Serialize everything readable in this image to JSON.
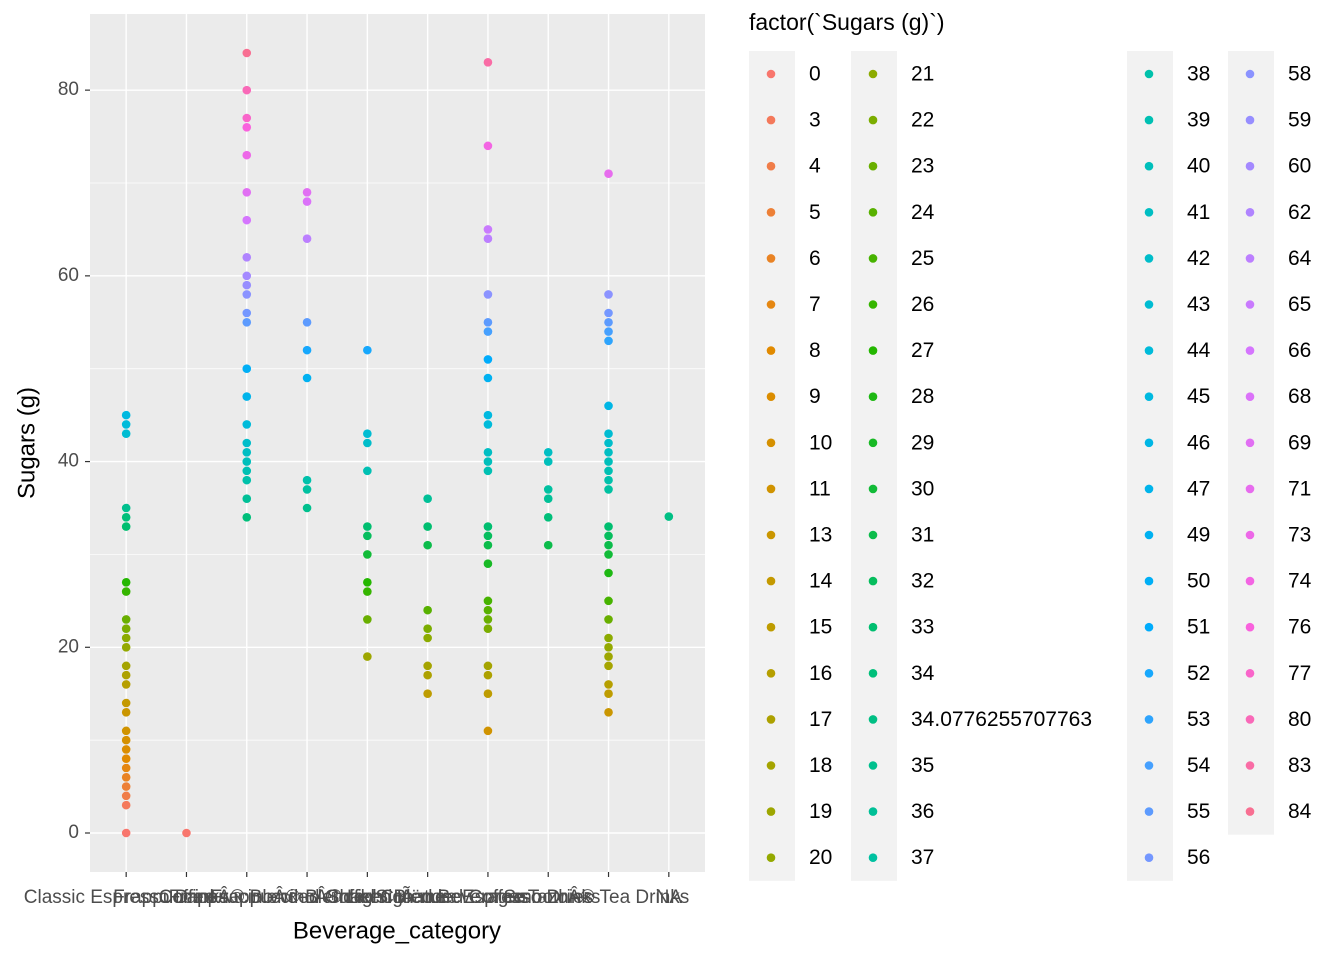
{
  "chart_data": {
    "type": "scatter",
    "x_label": "Beverage_category",
    "y_label": "Sugars (g)",
    "legend_title": "factor(`Sugars (g)`)",
    "categories": [
      "Classic Espresso Drinks",
      "Coffee",
      "FrappuccinoÂ® Blended Coffee",
      "FrappuccinoÂ® Blended CrÃ¨me",
      "FrappuccinoÂ® Light Blended Coffee",
      "Shaken Iced Beverages",
      "Signature Espresso Drinks",
      "Smoothies",
      "TazoÂ® Tea Drinks",
      "NA"
    ],
    "ylim": [
      -4.2,
      88.2
    ],
    "yticks": [
      0,
      20,
      40,
      60,
      80
    ],
    "yminorticks": [
      10,
      30,
      50,
      70
    ],
    "grid": true,
    "legend": "right",
    "series": [
      {
        "name": "0",
        "color": "#F8766D",
        "values": [
          0,
          0,
          null,
          null,
          null,
          null,
          null,
          null,
          null,
          null
        ]
      },
      {
        "name": "3",
        "color": "#F4795B",
        "values": [
          3,
          null,
          null,
          null,
          null,
          null,
          null,
          null,
          null,
          null
        ]
      },
      {
        "name": "4",
        "color": "#F07D49",
        "values": [
          4,
          null,
          null,
          null,
          null,
          null,
          null,
          null,
          null,
          null
        ]
      },
      {
        "name": "5",
        "color": "#ED8037",
        "values": [
          5,
          null,
          null,
          null,
          null,
          null,
          null,
          null,
          null,
          null
        ]
      },
      {
        "name": "6",
        "color": "#E98324",
        "values": [
          6,
          null,
          null,
          null,
          null,
          null,
          null,
          null,
          null,
          null
        ]
      },
      {
        "name": "7",
        "color": "#E58712",
        "values": [
          7,
          null,
          null,
          null,
          null,
          null,
          null,
          null,
          null,
          null
        ]
      },
      {
        "name": "8",
        "color": "#E18A00",
        "values": [
          8,
          null,
          null,
          null,
          null,
          null,
          null,
          null,
          null,
          null
        ]
      },
      {
        "name": "9",
        "color": "#DB8D00",
        "values": [
          9,
          null,
          null,
          null,
          null,
          null,
          null,
          null,
          null,
          null
        ]
      },
      {
        "name": "10",
        "color": "#D59000",
        "values": [
          10,
          null,
          null,
          null,
          null,
          null,
          null,
          null,
          null,
          null
        ]
      },
      {
        "name": "11",
        "color": "#D09300",
        "values": [
          11,
          null,
          null,
          null,
          null,
          null,
          11,
          null,
          null,
          null
        ]
      },
      {
        "name": "13",
        "color": "#CA9600",
        "values": [
          13,
          null,
          null,
          null,
          null,
          null,
          null,
          null,
          13,
          null
        ]
      },
      {
        "name": "14",
        "color": "#C49900",
        "values": [
          14,
          null,
          null,
          null,
          null,
          null,
          null,
          null,
          null,
          null
        ]
      },
      {
        "name": "15",
        "color": "#BE9C00",
        "values": [
          null,
          null,
          null,
          null,
          null,
          15,
          15,
          null,
          15,
          null
        ]
      },
      {
        "name": "16",
        "color": "#B69F00",
        "values": [
          16,
          null,
          null,
          null,
          null,
          null,
          null,
          null,
          16,
          null
        ]
      },
      {
        "name": "17",
        "color": "#ADA100",
        "values": [
          17,
          null,
          null,
          null,
          null,
          17,
          17,
          null,
          null,
          null
        ]
      },
      {
        "name": "18",
        "color": "#A5A400",
        "values": [
          18,
          null,
          null,
          null,
          null,
          18,
          18,
          null,
          18,
          null
        ]
      },
      {
        "name": "19",
        "color": "#9DA600",
        "values": [
          null,
          null,
          null,
          null,
          19,
          null,
          null,
          null,
          19,
          null
        ]
      },
      {
        "name": "20",
        "color": "#94A900",
        "values": [
          20,
          null,
          null,
          null,
          null,
          null,
          null,
          null,
          20,
          null
        ]
      },
      {
        "name": "21",
        "color": "#8CAB00",
        "values": [
          21,
          null,
          null,
          null,
          null,
          21,
          null,
          null,
          21,
          null
        ]
      },
      {
        "name": "22",
        "color": "#7BAD00",
        "values": [
          22,
          null,
          null,
          null,
          null,
          22,
          22,
          null,
          null,
          null
        ]
      },
      {
        "name": "23",
        "color": "#69AF00",
        "values": [
          23,
          null,
          null,
          null,
          23,
          null,
          23,
          null,
          23,
          null
        ]
      },
      {
        "name": "24",
        "color": "#58B100",
        "values": [
          null,
          null,
          null,
          null,
          null,
          24,
          24,
          null,
          null,
          null
        ]
      },
      {
        "name": "25",
        "color": "#47B300",
        "values": [
          null,
          null,
          null,
          null,
          null,
          null,
          25,
          null,
          25,
          null
        ]
      },
      {
        "name": "26",
        "color": "#35B500",
        "values": [
          26,
          null,
          null,
          null,
          26,
          null,
          null,
          null,
          null,
          null
        ]
      },
      {
        "name": "27",
        "color": "#24B700",
        "values": [
          27,
          null,
          null,
          null,
          27,
          null,
          null,
          null,
          null,
          null
        ]
      },
      {
        "name": "28",
        "color": "#1EB813",
        "values": [
          null,
          null,
          null,
          null,
          null,
          null,
          null,
          null,
          28,
          null
        ]
      },
      {
        "name": "29",
        "color": "#18B925",
        "values": [
          null,
          null,
          null,
          null,
          null,
          null,
          29,
          null,
          null,
          null
        ]
      },
      {
        "name": "30",
        "color": "#12BB38",
        "values": [
          null,
          null,
          null,
          null,
          30,
          null,
          null,
          null,
          30,
          null
        ]
      },
      {
        "name": "31",
        "color": "#0CBC4B",
        "values": [
          null,
          null,
          null,
          null,
          null,
          31,
          31,
          31,
          31,
          null
        ]
      },
      {
        "name": "32",
        "color": "#06BD5D",
        "values": [
          null,
          null,
          null,
          null,
          32,
          null,
          32,
          null,
          32,
          null
        ]
      },
      {
        "name": "33",
        "color": "#00BE70",
        "values": [
          33,
          null,
          null,
          null,
          33,
          33,
          33,
          null,
          33,
          null
        ]
      },
      {
        "name": "34",
        "color": "#00BF7A",
        "values": [
          34,
          null,
          34,
          null,
          null,
          null,
          null,
          34,
          null,
          null
        ]
      },
      {
        "name": "34.0776255707763",
        "color": "#00BF84",
        "values": [
          null,
          null,
          null,
          null,
          null,
          null,
          null,
          null,
          null,
          34.0776255707763
        ]
      },
      {
        "name": "35",
        "color": "#00C08E",
        "values": [
          35,
          null,
          null,
          35,
          null,
          null,
          null,
          null,
          null,
          null
        ]
      },
      {
        "name": "36",
        "color": "#00C097",
        "values": [
          null,
          null,
          36,
          null,
          null,
          36,
          null,
          36,
          null,
          null
        ]
      },
      {
        "name": "37",
        "color": "#00C1A1",
        "values": [
          null,
          null,
          null,
          37,
          null,
          null,
          null,
          37,
          37,
          null
        ]
      },
      {
        "name": "38",
        "color": "#00C1AB",
        "values": [
          null,
          null,
          38,
          38,
          null,
          null,
          null,
          null,
          38,
          null
        ]
      },
      {
        "name": "39",
        "color": "#00C0B3",
        "values": [
          null,
          null,
          39,
          null,
          39,
          null,
          39,
          null,
          39,
          null
        ]
      },
      {
        "name": "40",
        "color": "#00BFBB",
        "values": [
          null,
          null,
          40,
          null,
          null,
          null,
          40,
          40,
          40,
          null
        ]
      },
      {
        "name": "41",
        "color": "#00BEC3",
        "values": [
          null,
          null,
          41,
          null,
          null,
          null,
          41,
          41,
          41,
          null
        ]
      },
      {
        "name": "42",
        "color": "#00BDCA",
        "values": [
          null,
          null,
          42,
          null,
          42,
          null,
          null,
          null,
          42,
          null
        ]
      },
      {
        "name": "43",
        "color": "#00BCD2",
        "values": [
          43,
          null,
          null,
          null,
          43,
          null,
          null,
          null,
          43,
          null
        ]
      },
      {
        "name": "44",
        "color": "#00BBDA",
        "values": [
          44,
          null,
          44,
          null,
          null,
          null,
          44,
          null,
          null,
          null
        ]
      },
      {
        "name": "45",
        "color": "#00B9E0",
        "values": [
          45,
          null,
          null,
          null,
          null,
          null,
          45,
          null,
          null,
          null
        ]
      },
      {
        "name": "46",
        "color": "#00B6E5",
        "values": [
          null,
          null,
          null,
          null,
          null,
          null,
          null,
          null,
          46,
          null
        ]
      },
      {
        "name": "47",
        "color": "#00B4EB",
        "values": [
          null,
          null,
          47,
          null,
          null,
          null,
          null,
          null,
          null,
          null
        ]
      },
      {
        "name": "49",
        "color": "#00B1F1",
        "values": [
          null,
          null,
          null,
          49,
          null,
          null,
          49,
          null,
          null,
          null
        ]
      },
      {
        "name": "50",
        "color": "#00AFF6",
        "values": [
          null,
          null,
          50,
          null,
          null,
          null,
          null,
          null,
          null,
          null
        ]
      },
      {
        "name": "51",
        "color": "#00ACFC",
        "values": [
          null,
          null,
          null,
          null,
          null,
          null,
          51,
          null,
          null,
          null
        ]
      },
      {
        "name": "52",
        "color": "#17A8FD",
        "values": [
          null,
          null,
          null,
          52,
          52,
          null,
          null,
          null,
          null,
          null
        ]
      },
      {
        "name": "53",
        "color": "#2EA4FD",
        "values": [
          null,
          null,
          null,
          null,
          null,
          null,
          null,
          null,
          53,
          null
        ]
      },
      {
        "name": "54",
        "color": "#46A0FE",
        "values": [
          null,
          null,
          null,
          null,
          null,
          null,
          54,
          null,
          54,
          null
        ]
      },
      {
        "name": "55",
        "color": "#5D9BFE",
        "values": [
          null,
          null,
          55,
          55,
          null,
          null,
          55,
          null,
          55,
          null
        ]
      },
      {
        "name": "56",
        "color": "#7497FF",
        "values": [
          null,
          null,
          56,
          null,
          null,
          null,
          null,
          null,
          56,
          null
        ]
      },
      {
        "name": "58",
        "color": "#8B93FF",
        "values": [
          null,
          null,
          58,
          null,
          null,
          null,
          58,
          null,
          58,
          null
        ]
      },
      {
        "name": "59",
        "color": "#978EFF",
        "values": [
          null,
          null,
          59,
          null,
          null,
          null,
          null,
          null,
          null,
          null
        ]
      },
      {
        "name": "60",
        "color": "#A489FF",
        "values": [
          null,
          null,
          60,
          null,
          null,
          null,
          null,
          null,
          null,
          null
        ]
      },
      {
        "name": "62",
        "color": "#B084FF",
        "values": [
          null,
          null,
          62,
          null,
          null,
          null,
          null,
          null,
          null,
          null
        ]
      },
      {
        "name": "64",
        "color": "#BC7FFF",
        "values": [
          null,
          null,
          null,
          64,
          null,
          null,
          64,
          null,
          null,
          null
        ]
      },
      {
        "name": "65",
        "color": "#C97AFE",
        "values": [
          null,
          null,
          null,
          null,
          null,
          null,
          65,
          null,
          null,
          null
        ]
      },
      {
        "name": "66",
        "color": "#D575FE",
        "values": [
          null,
          null,
          66,
          null,
          null,
          null,
          null,
          null,
          null,
          null
        ]
      },
      {
        "name": "68",
        "color": "#DB72F9",
        "values": [
          null,
          null,
          null,
          68,
          null,
          null,
          null,
          null,
          null,
          null
        ]
      },
      {
        "name": "69",
        "color": "#E16FF3",
        "values": [
          null,
          null,
          69,
          69,
          null,
          null,
          null,
          null,
          null,
          null
        ]
      },
      {
        "name": "71",
        "color": "#E76CEE",
        "values": [
          null,
          null,
          null,
          null,
          null,
          null,
          null,
          null,
          71,
          null
        ]
      },
      {
        "name": "73",
        "color": "#ED68E8",
        "values": [
          null,
          null,
          73,
          null,
          null,
          null,
          null,
          null,
          null,
          null
        ]
      },
      {
        "name": "74",
        "color": "#F365E3",
        "values": [
          null,
          null,
          null,
          null,
          null,
          null,
          74,
          null,
          null,
          null
        ]
      },
      {
        "name": "76",
        "color": "#F962DD",
        "values": [
          null,
          null,
          76,
          null,
          null,
          null,
          null,
          null,
          null,
          null
        ]
      },
      {
        "name": "77",
        "color": "#F965CA",
        "values": [
          null,
          null,
          77,
          null,
          null,
          null,
          null,
          null,
          null,
          null
        ]
      },
      {
        "name": "80",
        "color": "#F969B8",
        "values": [
          null,
          null,
          80,
          null,
          null,
          null,
          null,
          null,
          null,
          null
        ]
      },
      {
        "name": "83",
        "color": "#F96CA5",
        "values": [
          null,
          null,
          null,
          null,
          null,
          null,
          83,
          null,
          null,
          null
        ]
      },
      {
        "name": "84",
        "color": "#F86F92",
        "values": [
          null,
          null,
          84,
          null,
          null,
          null,
          null,
          null,
          null,
          null
        ]
      }
    ]
  }
}
